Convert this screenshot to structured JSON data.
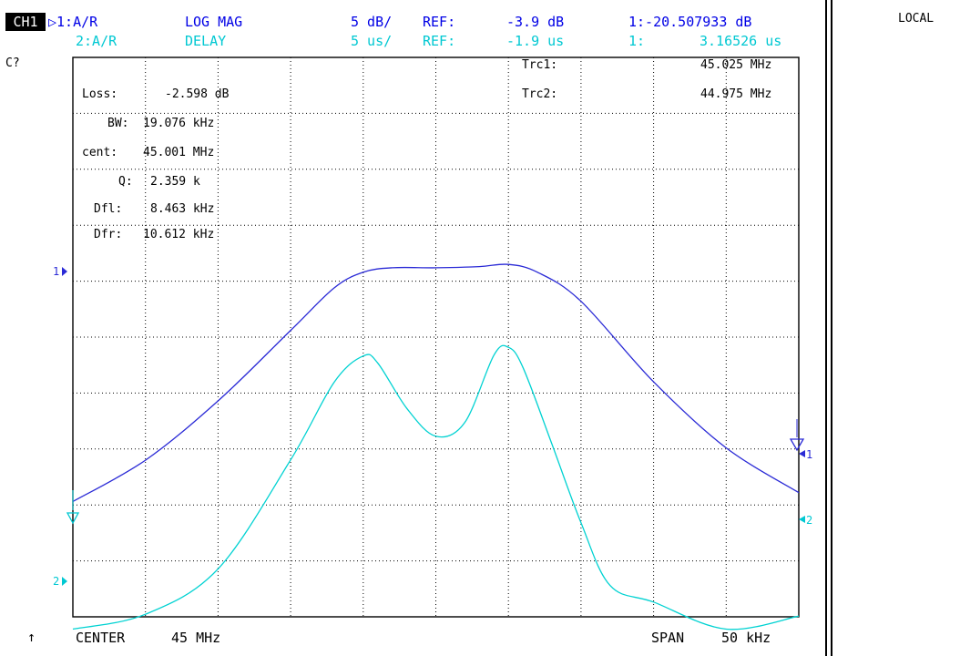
{
  "header": {
    "channel": "CH1",
    "row1": {
      "trace": "▷1:A/R",
      "format": "LOG MAG",
      "scale": "5 dB/",
      "ref_label": "REF:",
      "ref_value": "-3.9 dB",
      "marker": "1:-20.507933 dB"
    },
    "row2": {
      "trace": "2:A/R",
      "format": "DELAY",
      "scale": "5 us/",
      "ref_label": "REF:",
      "ref_value": "-1.9 us",
      "marker_label": "1:",
      "marker_value": "3.16526 us"
    },
    "status": "C?",
    "local": "LOCAL"
  },
  "readouts": {
    "left": [
      {
        "label": "Loss:",
        "value": "-2.598 dB"
      },
      {
        "label": "BW:",
        "value": "19.076 kHz"
      },
      {
        "label": "cent:",
        "value": "45.001 MHz"
      },
      {
        "label": "Q:",
        "value": "2.359 k"
      },
      {
        "label": "Dfl:",
        "value": "8.463 kHz"
      },
      {
        "label": "Dfr:",
        "value": "10.612 kHz"
      }
    ],
    "right": [
      {
        "label": "Trc1:",
        "value": "45.025 MHz"
      },
      {
        "label": "Trc2:",
        "value": "44.975 MHz"
      }
    ]
  },
  "footer": {
    "arrow": "↑",
    "center_label": "CENTER",
    "center_value": "45 MHz",
    "span_label": "SPAN",
    "span_value": "50 kHz"
  },
  "ref_markers": {
    "trace1": "1",
    "trace2": "2"
  },
  "end_markers": {
    "trace1": "1",
    "trace2": "2"
  },
  "chart_data": {
    "type": "line",
    "x_center_mhz": 45,
    "x_span_khz": 50,
    "xlim": [
      44.975,
      45.025
    ],
    "grid": true,
    "grid_divisions": {
      "x": 10,
      "y": 10
    },
    "series": [
      {
        "color": "#2a2ad6",
        "scale": "5 dB/div",
        "ref": "-3.9 dB",
        "x": [
          44.975,
          44.98,
          44.985,
          44.99,
          44.993,
          44.995,
          44.997,
          45.0,
          45.003,
          45.005,
          45.007,
          45.01,
          45.015,
          45.02,
          45.025
        ],
        "y": [
          -24.6,
          -20.9,
          -15.6,
          -9.3,
          -5.5,
          -4.1,
          -3.7,
          -3.7,
          -3.6,
          -3.4,
          -4.1,
          -6.7,
          -13.9,
          -19.8,
          -23.8
        ]
      },
      {
        "color": "#00d2d2",
        "scale": "5 us/div",
        "ref": "-1.9 us",
        "x": [
          44.975,
          44.98,
          44.985,
          44.99,
          44.993,
          44.995,
          44.996,
          44.998,
          45.0,
          45.002,
          45.004,
          45.005,
          45.006,
          45.008,
          45.01,
          45.012,
          45.015,
          45.02,
          45.025
        ],
        "y": [
          -7.8,
          -6.1,
          -0.9,
          11.6,
          20.5,
          23.5,
          22.7,
          17.5,
          14.3,
          15.9,
          23.6,
          24.5,
          22.2,
          13.4,
          4.4,
          -2.8,
          -4.7,
          -7.8,
          -6.3
        ]
      }
    ]
  }
}
